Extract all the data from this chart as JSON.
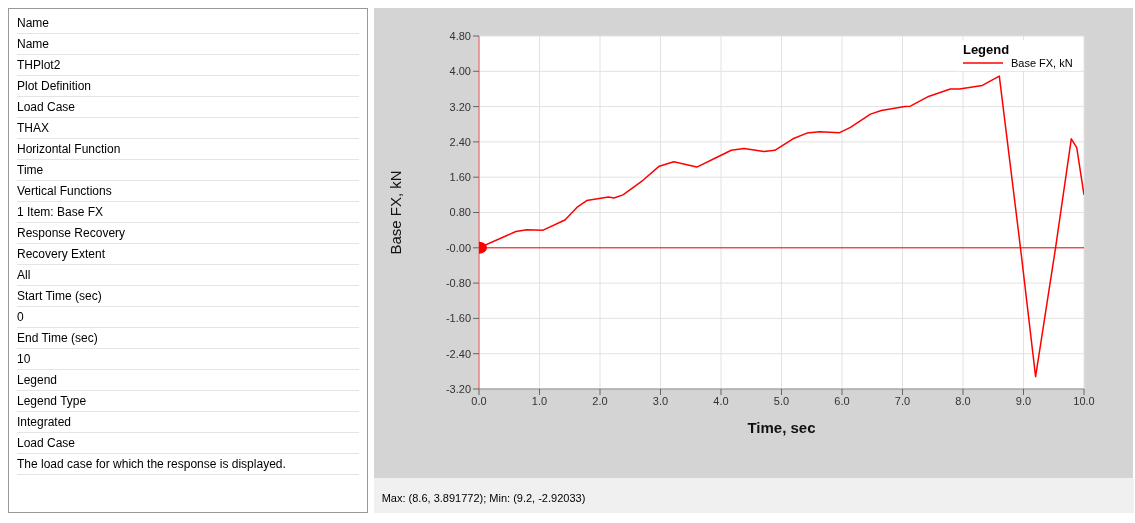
{
  "chart_data": [
    {
      "type": "other",
      "annotations": [
        "Name",
        "Name",
        "THPlot2",
        "Plot Definition",
        "Load Case",
        "THAX",
        "Horizontal Function",
        "Time",
        "Vertical Functions",
        "1 Item: Base FX",
        "Response Recovery",
        "Recovery Extent",
        "All",
        "Start Time (sec)",
        "0",
        "End Time (sec)",
        "10",
        "Legend",
        "Legend Type",
        "Integrated",
        "Load Case",
        "The load case for which the response is displayed."
      ]
    },
    {
      "type": "line",
      "xlabel": "Time,  sec",
      "ylabel": "Base FX, kN",
      "legend_title": "Legend",
      "legend": "top right",
      "grid": true,
      "marker": "none",
      "line_style": "solid",
      "xlim": [
        0,
        10
      ],
      "xticks": [
        {
          "value": 0,
          "label": "0.0"
        },
        {
          "value": 1,
          "label": "1.0"
        },
        {
          "value": 2,
          "label": "2.0"
        },
        {
          "value": 3,
          "label": "3.0"
        },
        {
          "value": 4,
          "label": "4.0"
        },
        {
          "value": 5,
          "label": "5.0"
        },
        {
          "value": 6,
          "label": "6.0"
        },
        {
          "value": 7,
          "label": "7.0"
        },
        {
          "value": 8,
          "label": "8.0"
        },
        {
          "value": 9,
          "label": "9.0"
        },
        {
          "value": 10,
          "label": "10.0"
        }
      ],
      "ylim": [
        -3.2,
        4.8
      ],
      "yticks": [
        {
          "value": -3.2,
          "label": "-3.20"
        },
        {
          "value": -2.4,
          "label": "-2.40"
        },
        {
          "value": -1.6,
          "label": "-1.60"
        },
        {
          "value": -0.8,
          "label": "-0.80"
        },
        {
          "value": 0,
          "label": "-0.00"
        },
        {
          "value": 0.8,
          "label": "0.80"
        },
        {
          "value": 1.6,
          "label": "1.60"
        },
        {
          "value": 2.4,
          "label": "2.40"
        },
        {
          "value": 3.2,
          "label": "3.20"
        },
        {
          "value": 4,
          "label": "4.00"
        },
        {
          "value": 4.8,
          "label": "4.80"
        }
      ],
      "ref_lines": [
        {
          "axis": "y",
          "value": 0,
          "color": "#ff0000"
        }
      ],
      "annotations": [
        "Max: (8.6, 3.891772);   Min: (9.2, -2.92033)"
      ],
      "series": [
        {
          "name": "Base FX, kN",
          "color": "#ff0000",
          "x": [
            0,
            0.61,
            0.79,
            1.06,
            1.42,
            1.63,
            1.78,
            2.14,
            2.23,
            2.38,
            2.71,
            2.98,
            3.22,
            3.6,
            3.9,
            4.17,
            4.38,
            4.71,
            4.89,
            5.19,
            5.42,
            5.63,
            5.96,
            6.14,
            6.47,
            6.65,
            7.04,
            7.13,
            7.43,
            7.79,
            7.94,
            8.32,
            8.6,
            8.95,
            9.2,
            9.53,
            9.79,
            9.88,
            10
          ],
          "values": [
            0,
            0.37,
            0.41,
            0.4,
            0.63,
            0.93,
            1.07,
            1.15,
            1.13,
            1.2,
            1.53,
            1.85,
            1.95,
            1.83,
            2.03,
            2.21,
            2.25,
            2.18,
            2.21,
            2.47,
            2.6,
            2.63,
            2.61,
            2.73,
            3.03,
            3.11,
            3.2,
            3.21,
            3.43,
            3.6,
            3.6,
            3.68,
            3.89,
            0,
            -2.92,
            0,
            2.47,
            2.27,
            1.2
          ]
        },
        {
          "type": "scatter",
          "color": "#ff0000",
          "marker": "circle",
          "x": [
            0
          ],
          "values": [
            0
          ]
        }
      ]
    }
  ]
}
